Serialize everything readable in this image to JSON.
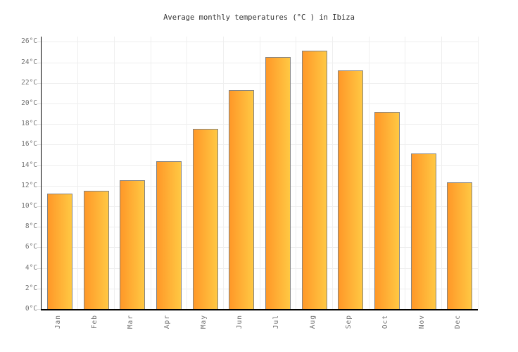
{
  "chart_data": {
    "type": "bar",
    "title": "Average monthly temperatures (°C ) in Ibiza",
    "categories": [
      "Jan",
      "Feb",
      "Mar",
      "Apr",
      "May",
      "Jun",
      "Jul",
      "Aug",
      "Sep",
      "Oct",
      "Nov",
      "Dec"
    ],
    "values": [
      11.2,
      11.5,
      12.5,
      14.4,
      17.5,
      21.3,
      24.5,
      25.1,
      23.2,
      19.2,
      15.1,
      12.3
    ],
    "series_name": "Average monthly temperature",
    "unit": "°C",
    "xlabel": "",
    "ylabel": "",
    "ylim": [
      0,
      26.5
    ],
    "ytick_step": 2,
    "yticks": [
      0,
      2,
      4,
      6,
      8,
      10,
      12,
      14,
      16,
      18,
      20,
      22,
      24,
      26
    ],
    "ytick_suffix": "°C",
    "grid": true,
    "legend": "none",
    "colors": {
      "bar_gradient_from": "#ff9828",
      "bar_gradient_to": "#ffc843",
      "bar_border": "#848484",
      "gridline": "#eeeeee",
      "axis": "#000000",
      "tick_label": "#757575",
      "title": "#333333",
      "background": "#ffffff"
    }
  }
}
